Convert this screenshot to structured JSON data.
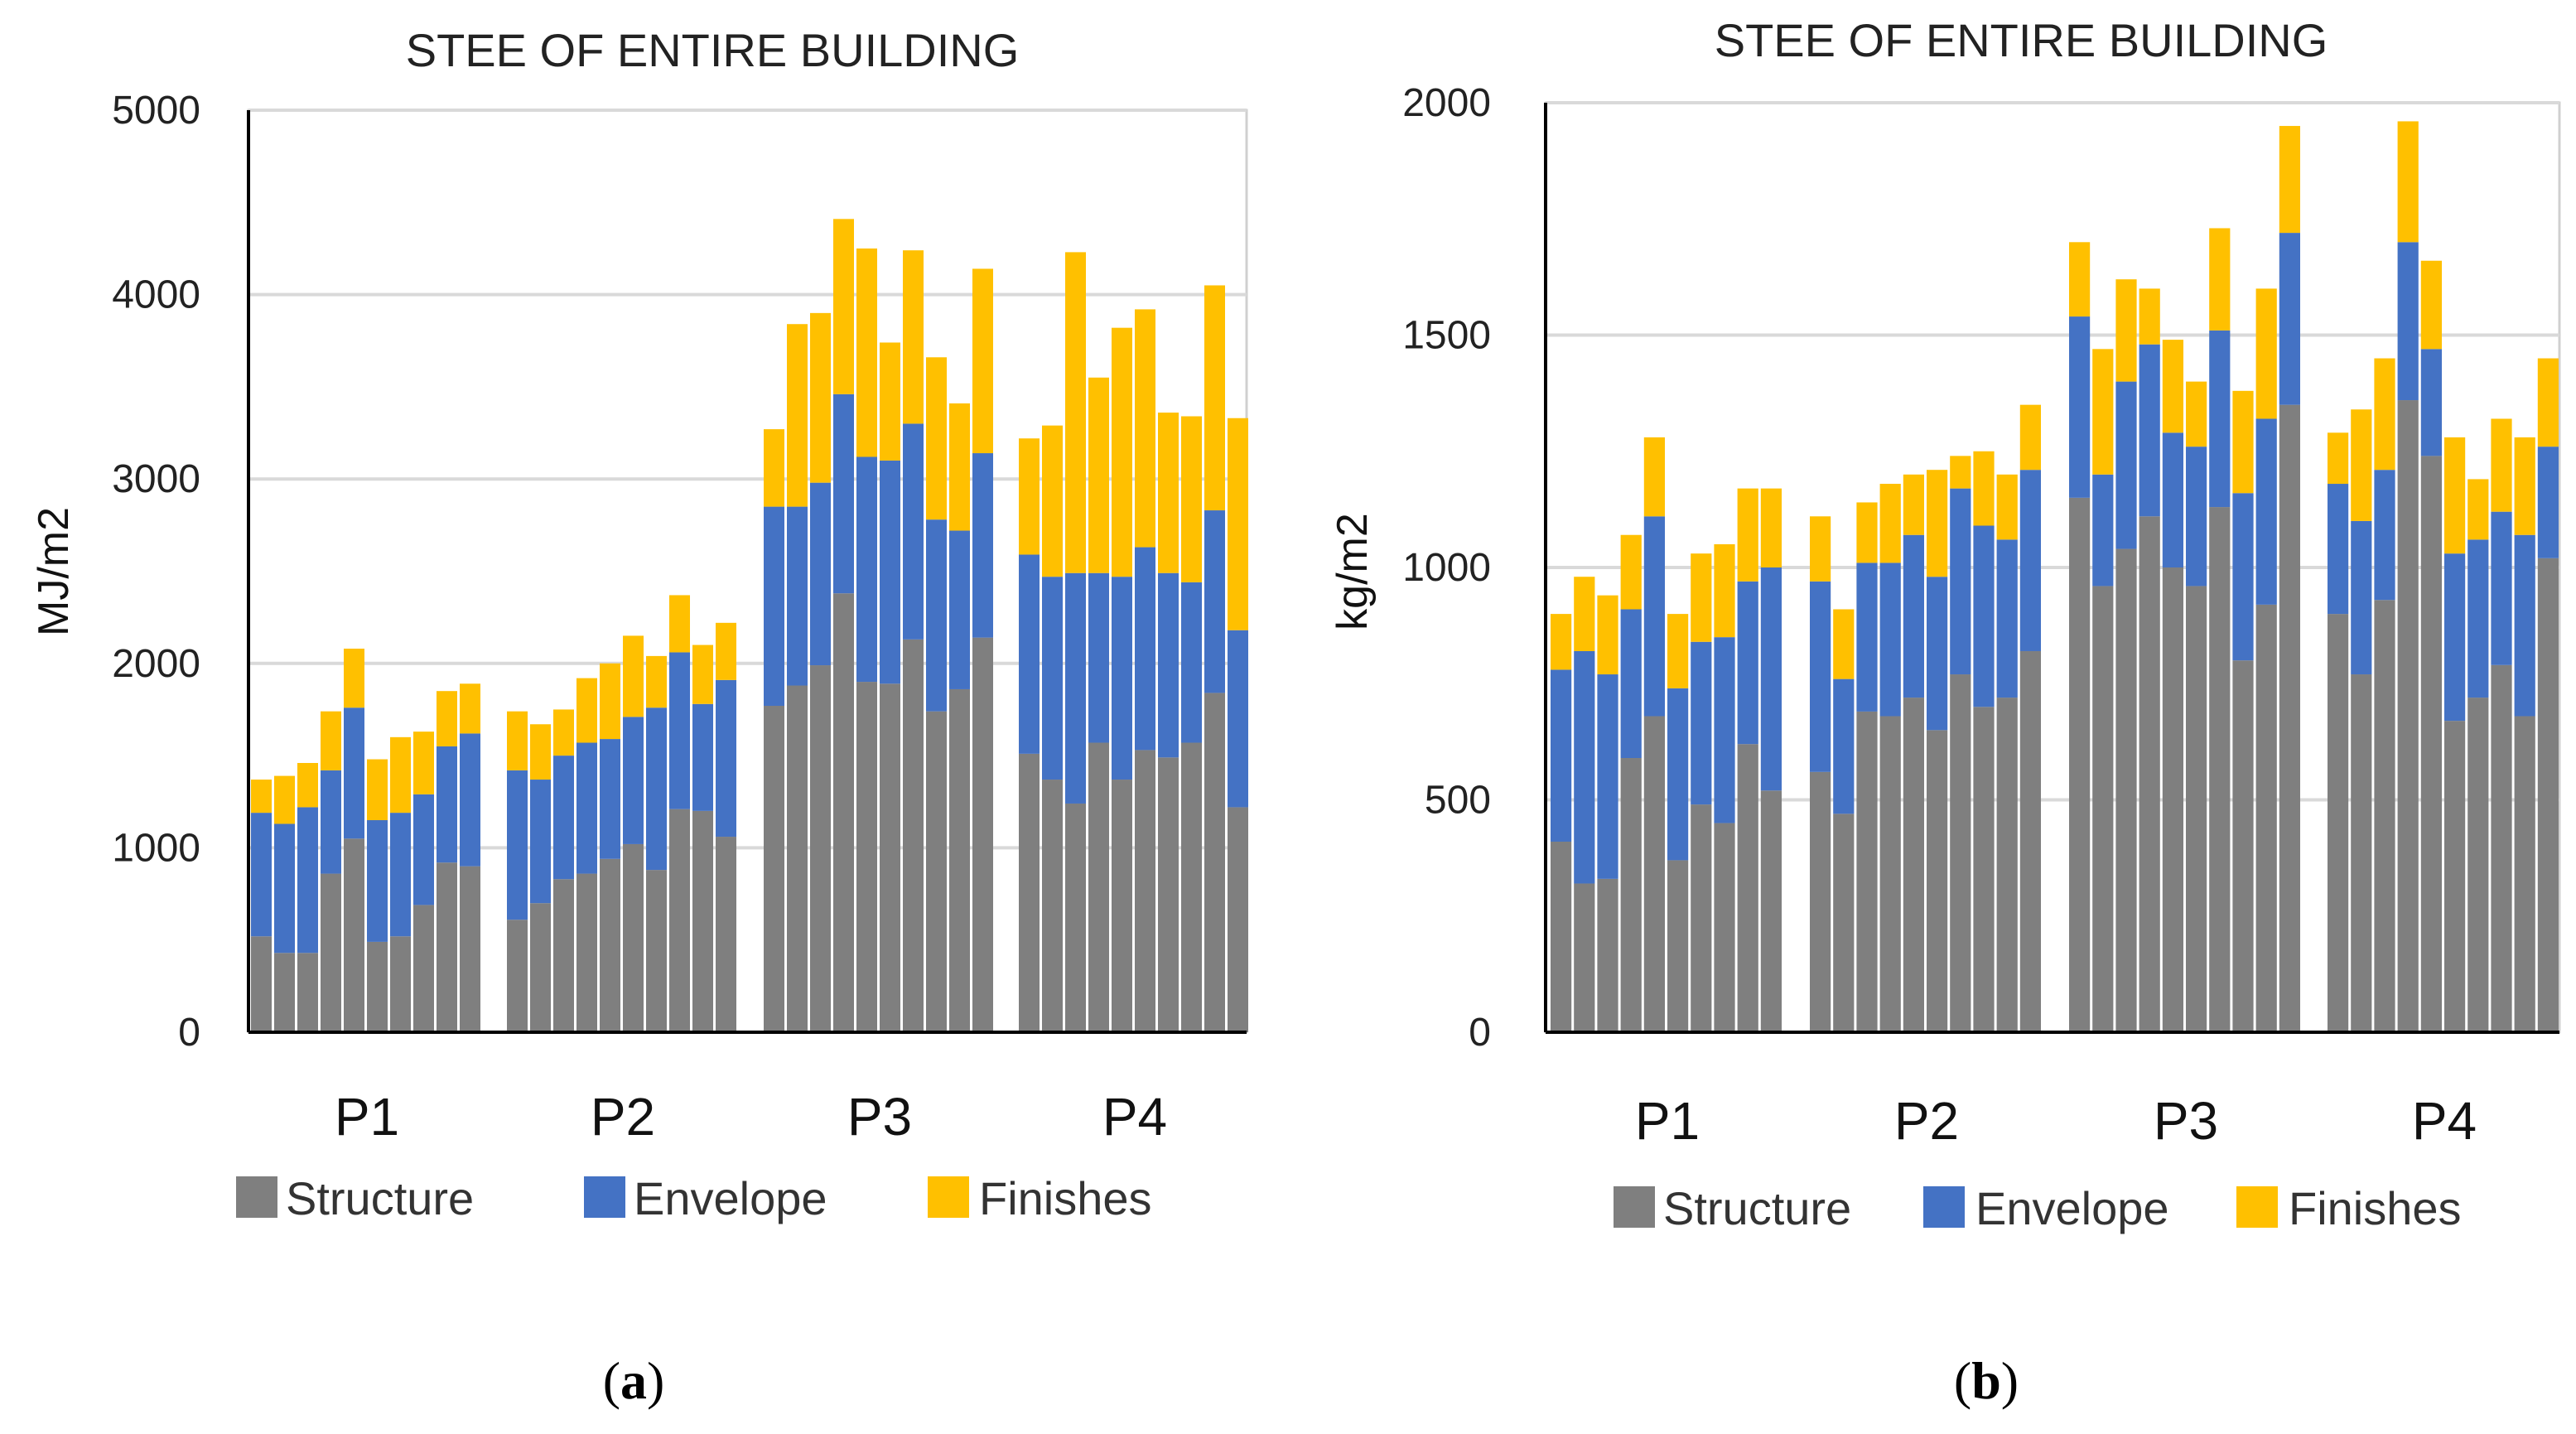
{
  "colors": {
    "Structure": "#7f7f7f",
    "Envelope": "#4472c4",
    "Finishes": "#ffc000"
  },
  "panel_labels": [
    "(a)",
    "(b)"
  ],
  "chart_data": [
    {
      "type": "bar",
      "stacked": true,
      "title": "STEE OF ENTIRE BUILDING",
      "ylabel": "MJ/m2",
      "xlabel": "",
      "ylim": [
        0,
        5000
      ],
      "yticks": [
        0,
        1000,
        2000,
        3000,
        4000,
        5000
      ],
      "grid": true,
      "legend": "bottom",
      "series_names": [
        "Structure",
        "Envelope",
        "Finishes"
      ],
      "groups": [
        {
          "label": "P1",
          "Structure": [
            520,
            430,
            430,
            860,
            1050,
            490,
            520,
            690,
            920,
            900
          ],
          "Envelope": [
            670,
            700,
            790,
            560,
            710,
            660,
            670,
            600,
            630,
            720
          ],
          "Finishes": [
            180,
            260,
            240,
            320,
            320,
            330,
            410,
            340,
            300,
            270
          ]
        },
        {
          "label": "P2",
          "Structure": [
            610,
            700,
            830,
            860,
            940,
            1020,
            880,
            1210,
            1200,
            1060
          ],
          "Envelope": [
            810,
            670,
            670,
            710,
            650,
            690,
            880,
            850,
            580,
            850
          ],
          "Finishes": [
            320,
            300,
            250,
            350,
            410,
            440,
            280,
            310,
            320,
            310
          ]
        },
        {
          "label": "P3",
          "Structure": [
            1770,
            1880,
            1990,
            2380,
            1900,
            1890,
            2130,
            1740,
            1860,
            2140
          ],
          "Envelope": [
            1080,
            970,
            990,
            1080,
            1220,
            1210,
            1170,
            1040,
            860,
            1000
          ],
          "Finishes": [
            420,
            990,
            920,
            950,
            1130,
            640,
            940,
            880,
            690,
            1000
          ]
        },
        {
          "label": "P4",
          "Structure": [
            1510,
            1370,
            1240,
            1570,
            1370,
            1530,
            1490,
            1570,
            1840,
            1220
          ],
          "Envelope": [
            1080,
            1100,
            1250,
            920,
            1100,
            1100,
            1000,
            870,
            990,
            960
          ],
          "Finishes": [
            630,
            820,
            1740,
            1060,
            1350,
            1290,
            870,
            900,
            1220,
            1150
          ]
        }
      ]
    },
    {
      "type": "bar",
      "stacked": true,
      "title": "STEE OF ENTIRE BUILDING",
      "ylabel": "kg/m2",
      "xlabel": "",
      "ylim": [
        0,
        2000
      ],
      "yticks": [
        0,
        500,
        1000,
        1500,
        2000
      ],
      "grid": true,
      "legend": "bottom",
      "series_names": [
        "Structure",
        "Envelope",
        "Finishes"
      ],
      "groups": [
        {
          "label": "P1",
          "Structure": [
            410,
            320,
            330,
            590,
            680,
            370,
            490,
            450,
            620,
            520
          ],
          "Envelope": [
            370,
            500,
            440,
            320,
            430,
            370,
            350,
            400,
            350,
            480
          ],
          "Finishes": [
            120,
            160,
            170,
            160,
            170,
            160,
            190,
            200,
            200,
            170
          ]
        },
        {
          "label": "P2",
          "Structure": [
            560,
            470,
            690,
            680,
            720,
            650,
            770,
            700,
            720,
            820
          ],
          "Envelope": [
            410,
            290,
            320,
            330,
            350,
            330,
            400,
            390,
            340,
            390
          ],
          "Finishes": [
            140,
            150,
            130,
            170,
            130,
            230,
            70,
            160,
            140,
            140
          ]
        },
        {
          "label": "P3",
          "Structure": [
            1150,
            960,
            1040,
            1110,
            1000,
            960,
            1130,
            800,
            920,
            1350
          ],
          "Envelope": [
            390,
            240,
            360,
            370,
            290,
            300,
            380,
            360,
            400,
            370
          ],
          "Finishes": [
            160,
            270,
            220,
            120,
            200,
            140,
            220,
            220,
            280,
            230
          ]
        },
        {
          "label": "P4",
          "Structure": [
            900,
            770,
            930,
            1360,
            1240,
            670,
            720,
            790,
            680,
            1020
          ],
          "Envelope": [
            280,
            330,
            280,
            340,
            230,
            360,
            340,
            330,
            390,
            240
          ],
          "Finishes": [
            110,
            240,
            240,
            260,
            190,
            250,
            130,
            200,
            210,
            190
          ]
        }
      ]
    }
  ]
}
